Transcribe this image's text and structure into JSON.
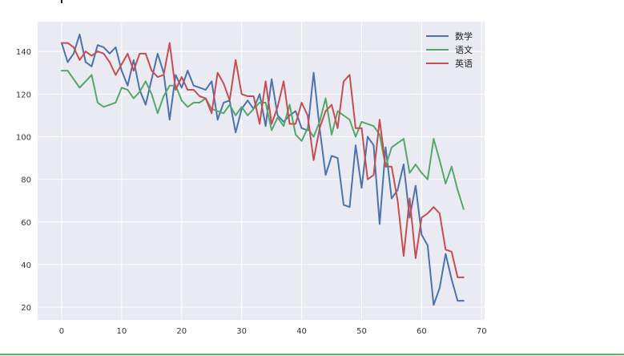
{
  "chart_data": {
    "type": "line",
    "title": "",
    "xlabel": "",
    "ylabel": "",
    "xlim": [
      -4,
      70.5
    ],
    "ylim": [
      14,
      154
    ],
    "grid": true,
    "legend_position": "top-right",
    "x_ticks": [
      0,
      10,
      20,
      30,
      40,
      50,
      60,
      70
    ],
    "y_ticks": [
      20,
      40,
      60,
      80,
      100,
      120,
      140
    ],
    "x": [
      0,
      1,
      2,
      3,
      4,
      5,
      6,
      7,
      8,
      9,
      10,
      11,
      12,
      13,
      14,
      15,
      16,
      17,
      18,
      19,
      20,
      21,
      22,
      23,
      24,
      25,
      26,
      27,
      28,
      29,
      30,
      31,
      32,
      33,
      34,
      35,
      36,
      37,
      38,
      39,
      40,
      41,
      42,
      43,
      44,
      45,
      46,
      47,
      48,
      49,
      50,
      51,
      52,
      53,
      54,
      55,
      56,
      57,
      58,
      59,
      60,
      61,
      62,
      63,
      64,
      65,
      66,
      67
    ],
    "series": [
      {
        "name": "数学",
        "color": "#4c72b0",
        "values": [
          144,
          135,
          139,
          148,
          135,
          133,
          143,
          142,
          139,
          142,
          131,
          124,
          136,
          122,
          115,
          127,
          139,
          130,
          108,
          129,
          123,
          131,
          124,
          123,
          122,
          126,
          108,
          116,
          117,
          102,
          113,
          117,
          113,
          120,
          105,
          127,
          110,
          107,
          110,
          112,
          104,
          103,
          130,
          104,
          82,
          91,
          90,
          68,
          67,
          96,
          76,
          100,
          96,
          59,
          95,
          71,
          75,
          87,
          62,
          77,
          54,
          49,
          21,
          29,
          45,
          33,
          23,
          23
        ]
      },
      {
        "name": "语文",
        "color": "#55a868",
        "values": [
          131,
          131,
          127,
          123,
          126,
          129,
          116,
          114,
          115,
          116,
          123,
          122,
          118,
          121,
          126,
          120,
          111,
          119,
          124,
          124,
          117,
          114,
          116,
          116,
          118,
          113,
          112,
          111,
          115,
          110,
          114,
          110,
          113,
          116,
          116,
          103,
          109,
          105,
          115,
          101,
          98,
          104,
          100,
          107,
          118,
          101,
          112,
          110,
          108,
          100,
          107,
          106,
          105,
          101,
          86,
          95,
          97,
          99,
          83,
          87,
          83,
          80,
          99,
          89,
          78,
          86,
          75,
          66
        ]
      },
      {
        "name": "英语",
        "color": "#c44e52",
        "values": [
          144,
          144,
          142,
          136,
          140,
          138,
          140,
          139,
          135,
          129,
          134,
          139,
          131,
          139,
          139,
          131,
          128,
          129,
          144,
          122,
          128,
          122,
          122,
          119,
          118,
          111,
          130,
          125,
          117,
          136,
          120,
          119,
          119,
          106,
          126,
          106,
          114,
          126,
          106,
          106,
          116,
          110,
          89,
          104,
          112,
          115,
          104,
          126,
          129,
          104,
          104,
          80,
          82,
          108,
          86,
          86,
          70,
          44,
          71,
          43,
          62,
          64,
          67,
          64,
          47,
          46,
          34,
          34
        ]
      }
    ]
  }
}
